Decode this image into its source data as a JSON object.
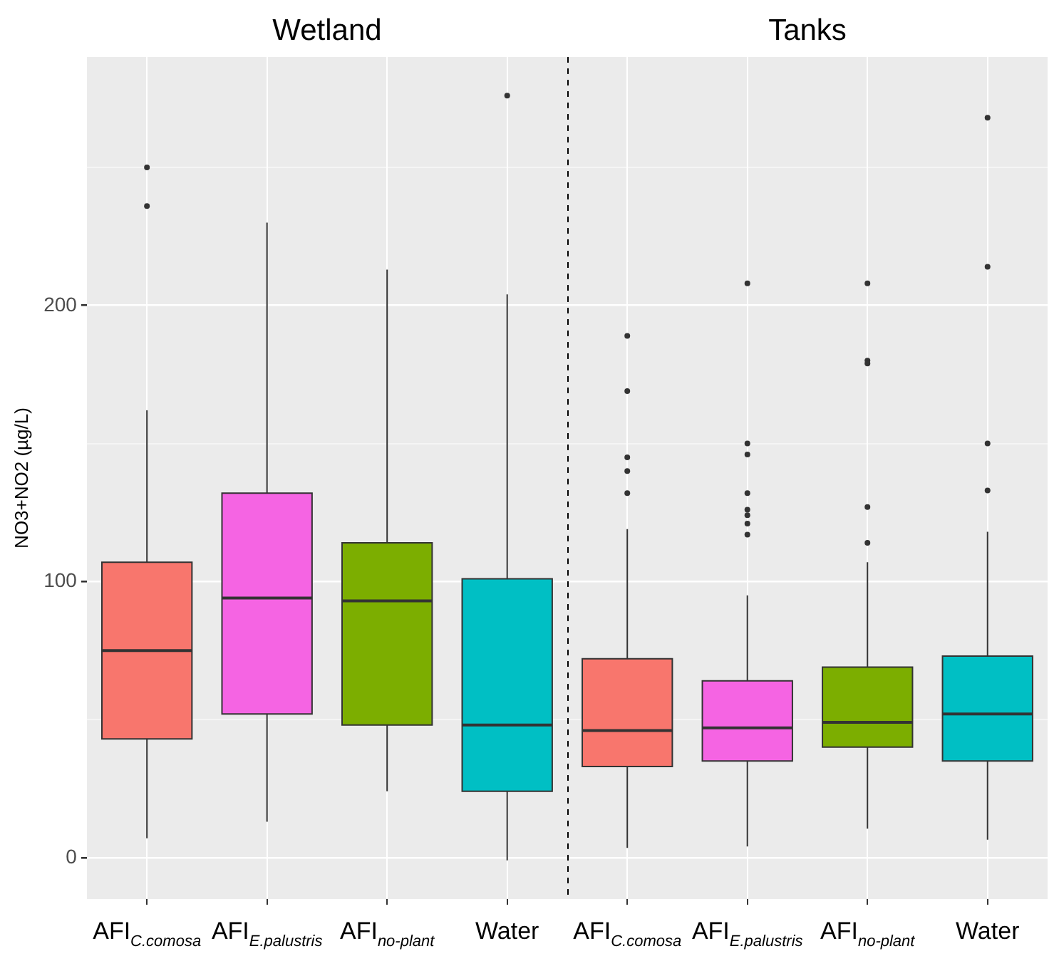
{
  "chart_data": {
    "type": "box",
    "ylabel": "NO3+NO2 (µg/L)",
    "annotations": [
      "Wetland",
      "Tanks"
    ],
    "categories": [
      "AFI$_{C.comosa}$",
      "AFI$_{E.palustris}$",
      "AFI$_{no-plant}$",
      "Water",
      "AFI$_{C.comosa}$",
      "AFI$_{E.palustris}$",
      "AFI$_{no-plant}$",
      "Water"
    ],
    "colors": [
      "#f8766d",
      "#f564e3",
      "#7cae00",
      "#00bfc4",
      "#f8766d",
      "#f564e3",
      "#7cae00",
      "#00bfc4"
    ],
    "boxes": [
      {
        "low": 7,
        "q1": 43,
        "median": 75,
        "q3": 107,
        "high": 162,
        "outliers": [
          250,
          236
        ]
      },
      {
        "low": 13,
        "q1": 52,
        "median": 94,
        "q3": 132,
        "high": 230
      },
      {
        "low": 24,
        "q1": 48,
        "median": 93,
        "q3": 114,
        "high": 213
      },
      {
        "low": -1,
        "q1": 24,
        "median": 48,
        "q3": 101,
        "high": 204,
        "outliers": [
          276
        ]
      },
      {
        "low": 3.5,
        "q1": 33,
        "median": 46,
        "q3": 72,
        "high": 119,
        "outliers": [
          189,
          169,
          145,
          140,
          132
        ]
      },
      {
        "low": 4,
        "q1": 35,
        "median": 47,
        "q3": 64,
        "high": 95,
        "outliers": [
          208,
          150,
          146,
          132,
          126,
          124,
          121,
          117
        ]
      },
      {
        "low": 10.5,
        "q1": 40,
        "median": 49,
        "q3": 69,
        "high": 107,
        "outliers": [
          208,
          180,
          179,
          127,
          114
        ]
      },
      {
        "low": 6.5,
        "q1": 35,
        "median": 52,
        "q3": 73,
        "high": 118,
        "outliers": [
          268,
          214,
          150,
          133
        ]
      }
    ],
    "ylim": [
      -15,
      290
    ],
    "yticks": [
      0,
      {
        "value": 50,
        "label": null
      },
      100,
      {
        "value": 150,
        "label": null
      },
      200,
      {
        "value": 250,
        "label": null
      }
    ],
    "grid": true,
    "legend": false
  }
}
